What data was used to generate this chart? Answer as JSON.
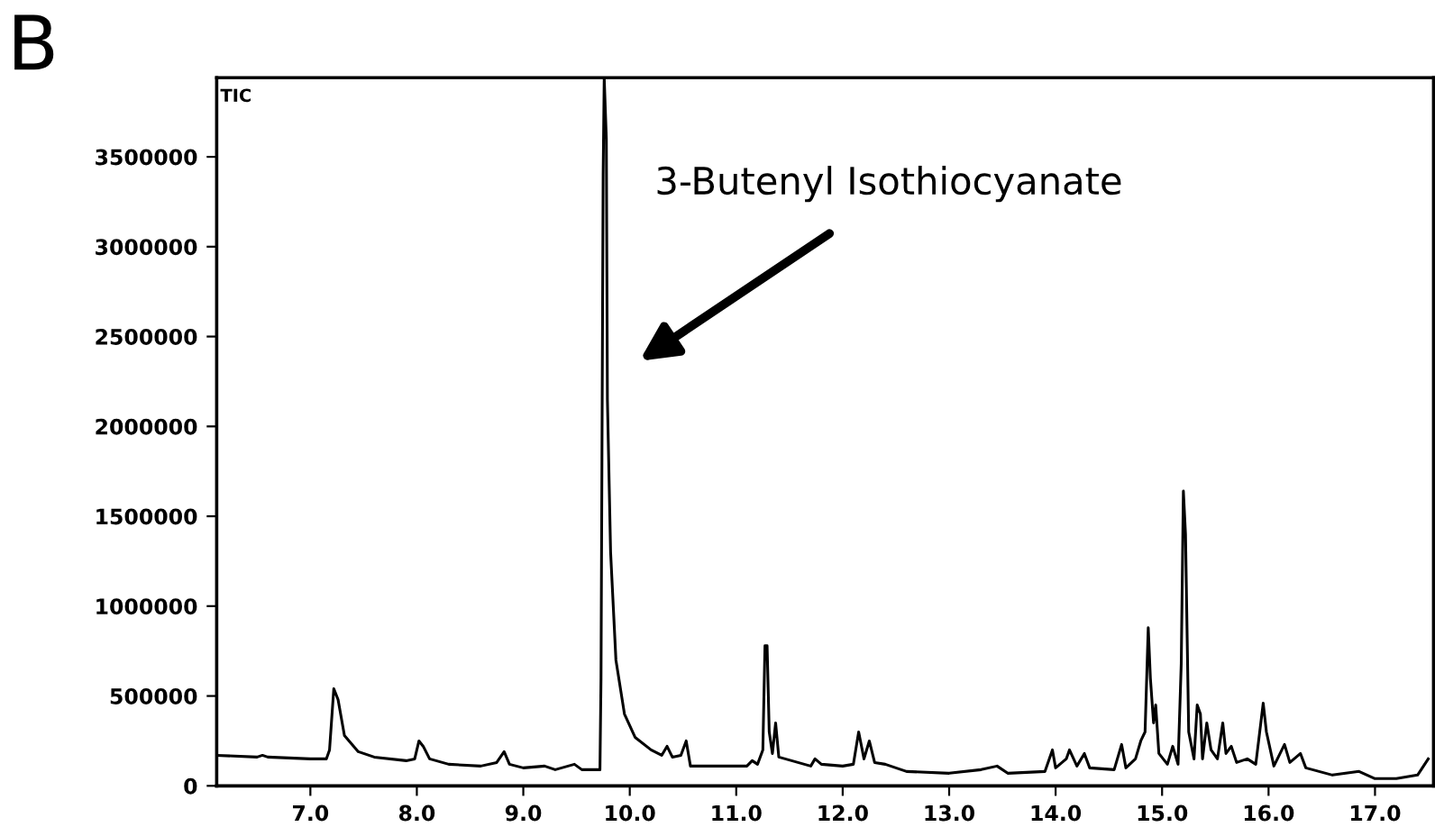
{
  "chart_data": {
    "type": "line",
    "title": "B",
    "annotations": [
      "TIC",
      "3-Butenyl Isothiocyanate"
    ],
    "x": [
      6.12,
      6.5,
      6.55,
      6.6,
      7.0,
      7.15,
      7.18,
      7.22,
      7.26,
      7.32,
      7.45,
      7.6,
      7.9,
      7.98,
      8.02,
      8.06,
      8.12,
      8.3,
      8.6,
      8.75,
      8.82,
      8.87,
      9.0,
      9.2,
      9.3,
      9.48,
      9.55,
      9.72,
      9.73,
      9.75,
      9.76,
      9.78,
      9.79,
      9.82,
      9.87,
      9.95,
      10.05,
      10.2,
      10.3,
      10.35,
      10.4,
      10.48,
      10.53,
      10.57,
      11.1,
      11.15,
      11.2,
      11.25,
      11.27,
      11.29,
      11.31,
      11.34,
      11.37,
      11.4,
      11.7,
      11.74,
      11.8,
      12.0,
      12.1,
      12.15,
      12.2,
      12.25,
      12.3,
      12.4,
      12.6,
      13.0,
      13.3,
      13.45,
      13.55,
      13.9,
      13.97,
      14.0,
      14.1,
      14.13,
      14.2,
      14.27,
      14.32,
      14.55,
      14.62,
      14.66,
      14.75,
      14.8,
      14.84,
      14.87,
      14.89,
      14.92,
      14.94,
      14.97,
      15.05,
      15.1,
      15.15,
      15.18,
      15.2,
      15.22,
      15.25,
      15.3,
      15.33,
      15.36,
      15.38,
      15.42,
      15.46,
      15.52,
      15.57,
      15.6,
      15.65,
      15.7,
      15.8,
      15.88,
      15.95,
      15.98,
      16.05,
      16.15,
      16.2,
      16.3,
      16.35,
      16.6,
      16.85,
      17.0,
      17.2,
      17.4,
      17.5
    ],
    "series": [
      {
        "color": "#000000",
        "values": [
          170000,
          160000,
          170000,
          160000,
          150000,
          150000,
          200000,
          540000,
          480000,
          280000,
          190000,
          160000,
          140000,
          150000,
          250000,
          220000,
          150000,
          120000,
          110000,
          130000,
          190000,
          120000,
          100000,
          110000,
          90000,
          120000,
          90000,
          90000,
          600000,
          3400000,
          3940000,
          3600000,
          2150000,
          1300000,
          700000,
          400000,
          270000,
          200000,
          170000,
          220000,
          160000,
          170000,
          250000,
          110000,
          110000,
          140000,
          120000,
          200000,
          780000,
          780000,
          300000,
          180000,
          350000,
          160000,
          110000,
          150000,
          120000,
          110000,
          120000,
          300000,
          150000,
          250000,
          130000,
          120000,
          80000,
          70000,
          90000,
          110000,
          70000,
          80000,
          200000,
          100000,
          150000,
          200000,
          110000,
          180000,
          100000,
          90000,
          230000,
          100000,
          150000,
          250000,
          300000,
          880000,
          600000,
          350000,
          450000,
          180000,
          120000,
          220000,
          120000,
          680000,
          1640000,
          1400000,
          300000,
          150000,
          450000,
          400000,
          150000,
          350000,
          200000,
          150000,
          350000,
          180000,
          220000,
          130000,
          150000,
          120000,
          460000,
          300000,
          110000,
          230000,
          130000,
          180000,
          100000,
          60000,
          80000,
          40000,
          40000,
          60000,
          150000
        ]
      }
    ],
    "xlim": [
      6.12,
      17.55
    ],
    "ylim": [
      0,
      3940000
    ],
    "xticks": [
      {
        "value": 7.0,
        "label": "7.0"
      },
      {
        "value": 8.0,
        "label": "8.0"
      },
      {
        "value": 9.0,
        "label": "9.0"
      },
      {
        "value": 10.0,
        "label": "10.0"
      },
      {
        "value": 11.0,
        "label": "11.0"
      },
      {
        "value": 12.0,
        "label": "12.0"
      },
      {
        "value": 13.0,
        "label": "13.0"
      },
      {
        "value": 14.0,
        "label": "14.0"
      },
      {
        "value": 15.0,
        "label": "15.0"
      },
      {
        "value": 16.0,
        "label": "16.0"
      },
      {
        "value": 17.0,
        "label": "17.0"
      }
    ],
    "yticks": [
      0,
      500000,
      1000000,
      1500000,
      2000000,
      2500000,
      3000000,
      3500000
    ],
    "grid": false,
    "marker": "none",
    "line_style": "solid"
  }
}
